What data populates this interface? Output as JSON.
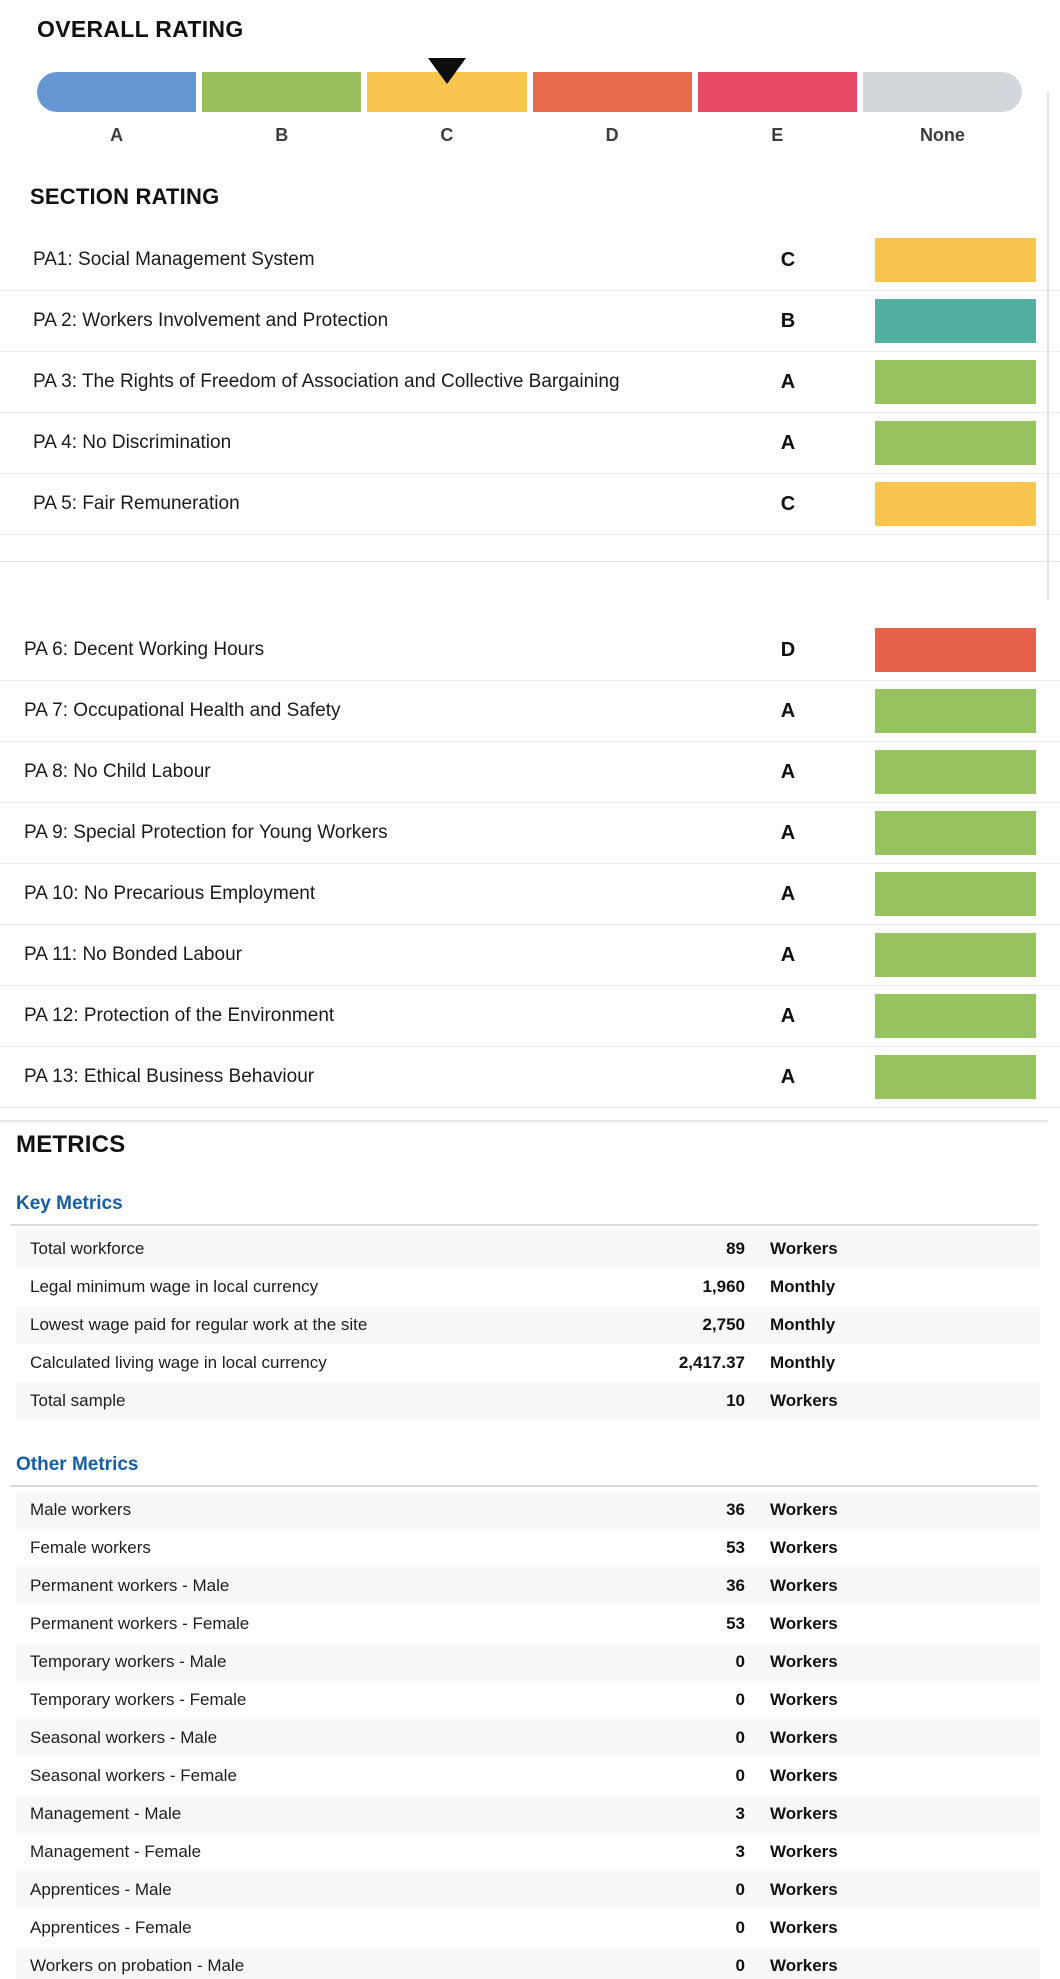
{
  "overall_rating": {
    "title": "OVERALL RATING",
    "selected": "C",
    "marker_icon": "triangle-down-icon",
    "segments": [
      {
        "label": "A",
        "color": "#6598D2",
        "marker": false
      },
      {
        "label": "B",
        "color": "#97C05C",
        "marker": false
      },
      {
        "label": "C",
        "color": "#F8C64E",
        "marker": true
      },
      {
        "label": "D",
        "color": "#E8694C",
        "marker": false
      },
      {
        "label": "E",
        "color": "#E84962",
        "marker": false
      },
      {
        "label": "None",
        "color": "#D3D6DB",
        "marker": false
      }
    ]
  },
  "section_rating": {
    "title": "SECTION RATING",
    "pages": [
      {
        "rows": [
          {
            "label": "PA1: Social Management System",
            "grade": "C",
            "color": "#F8C64E"
          },
          {
            "label": "PA 2: Workers Involvement and Protection",
            "grade": "B",
            "color": "#53B0A0"
          },
          {
            "label": "PA 3: The Rights of Freedom of Association and Collective Bargaining",
            "grade": "A",
            "color": "#97C35E"
          },
          {
            "label": "PA 4: No Discrimination",
            "grade": "A",
            "color": "#97C35E"
          },
          {
            "label": "PA 5: Fair Remuneration",
            "grade": "C",
            "color": "#F8C64E"
          }
        ]
      },
      {
        "rows": [
          {
            "label": "PA 6: Decent Working Hours",
            "grade": "D",
            "color": "#E7624A"
          },
          {
            "label": "PA 7: Occupational Health and Safety",
            "grade": "A",
            "color": "#97C35E"
          },
          {
            "label": "PA 8: No Child Labour",
            "grade": "A",
            "color": "#97C35E"
          },
          {
            "label": "PA 9: Special Protection for Young Workers",
            "grade": "A",
            "color": "#97C35E"
          },
          {
            "label": "PA 10: No Precarious Employment",
            "grade": "A",
            "color": "#97C35E"
          },
          {
            "label": "PA 11: No Bonded Labour",
            "grade": "A",
            "color": "#97C35E"
          },
          {
            "label": "PA 12: Protection of the Environment",
            "grade": "A",
            "color": "#97C35E"
          },
          {
            "label": "PA 13: Ethical Business Behaviour",
            "grade": "A",
            "color": "#97C35E"
          }
        ]
      }
    ]
  },
  "metrics": {
    "title": "METRICS",
    "heading_color": "#165EA5",
    "groups": [
      {
        "heading": "Key Metrics",
        "rows": [
          {
            "label": "Total workforce",
            "value": "89",
            "unit": "Workers"
          },
          {
            "label": "Legal minimum wage in local currency",
            "value": "1,960",
            "unit": "Monthly"
          },
          {
            "label": "Lowest wage paid for regular work at the site",
            "value": "2,750",
            "unit": "Monthly"
          },
          {
            "label": "Calculated living wage in local currency",
            "value": "2,417.37",
            "unit": "Monthly"
          },
          {
            "label": "Total sample",
            "value": "10",
            "unit": "Workers"
          }
        ]
      },
      {
        "heading": "Other Metrics",
        "rows": [
          {
            "label": "Male workers",
            "value": "36",
            "unit": "Workers"
          },
          {
            "label": "Female workers",
            "value": "53",
            "unit": "Workers"
          },
          {
            "label": "Permanent workers - Male",
            "value": "36",
            "unit": "Workers"
          },
          {
            "label": "Permanent workers - Female",
            "value": "53",
            "unit": "Workers"
          },
          {
            "label": "Temporary workers - Male",
            "value": "0",
            "unit": "Workers"
          },
          {
            "label": "Temporary workers - Female",
            "value": "0",
            "unit": "Workers"
          },
          {
            "label": "Seasonal workers - Male",
            "value": "0",
            "unit": "Workers"
          },
          {
            "label": "Seasonal workers - Female",
            "value": "0",
            "unit": "Workers"
          },
          {
            "label": "Management - Male",
            "value": "3",
            "unit": "Workers"
          },
          {
            "label": "Management - Female",
            "value": "3",
            "unit": "Workers"
          },
          {
            "label": "Apprentices - Male",
            "value": "0",
            "unit": "Workers"
          },
          {
            "label": "Apprentices - Female",
            "value": "0",
            "unit": "Workers"
          },
          {
            "label": "Workers on probation - Male",
            "value": "0",
            "unit": "Workers"
          }
        ]
      }
    ]
  },
  "colors": {
    "grade_a": "#97C35E",
    "grade_b_section": "#53B0A0",
    "grade_c": "#F8C64E",
    "grade_d": "#E7624A",
    "grade_e": "#E84962",
    "grade_none": "#D3D6DB",
    "overall_a_blue": "#6598D2",
    "row_alt_background": "#F7F8F9",
    "divider": "#ECECEC"
  }
}
